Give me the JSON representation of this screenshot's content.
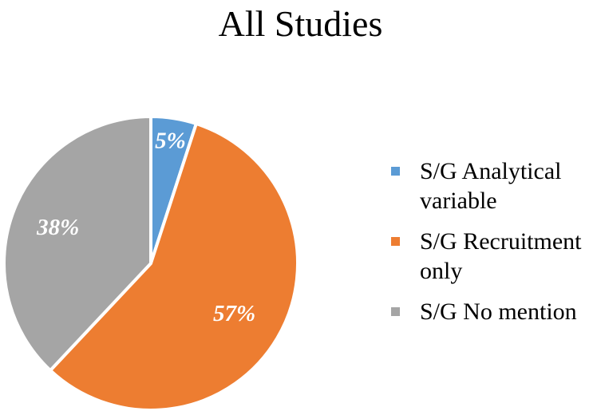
{
  "chart_data": {
    "type": "pie",
    "title": "All Studies",
    "slices": [
      {
        "label": "S/G Analytical variable",
        "value": 5,
        "display": "5%",
        "color": "#5b9bd5"
      },
      {
        "label": "S/G Recruitment only",
        "value": 57,
        "display": "57%",
        "color": "#ed7d31"
      },
      {
        "label": "S/G No mention",
        "value": 38,
        "display": "38%",
        "color": "#a5a5a5"
      }
    ],
    "legend_position": "right"
  }
}
